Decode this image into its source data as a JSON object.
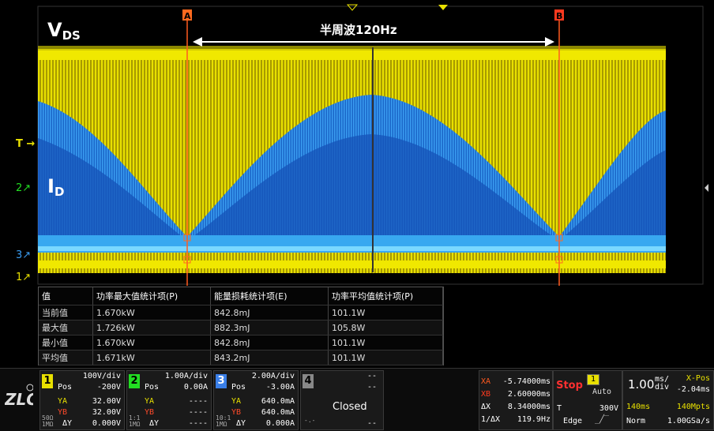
{
  "waveform": {
    "vds_label": "V",
    "vds_sub": "DS",
    "id_label": "I",
    "id_sub": "D",
    "annotation": "半周波120Hz",
    "cursor_a": "A",
    "cursor_b": "B",
    "markers": {
      "t": "T",
      "ch2": "2",
      "ch3": "3",
      "ch1": "1"
    },
    "colors": {
      "vds": "#e8e000",
      "id": "#1e7fe0",
      "cursor": "#ff5a1f",
      "ch2": "#22dd22"
    }
  },
  "measurements": {
    "headers": [
      "值",
      "功率最大值统计项(P)",
      "能量损耗统计项(E)",
      "功率平均值统计项(P)"
    ],
    "rows": [
      [
        "当前值",
        "1.670kW",
        "842.8mJ",
        "101.1W"
      ],
      [
        "最大值",
        "1.726kW",
        "882.3mJ",
        "105.8W"
      ],
      [
        "最小值",
        "1.670kW",
        "842.8mJ",
        "101.1W"
      ],
      [
        "平均值",
        "1.671kW",
        "843.2mJ",
        "101.1W"
      ]
    ]
  },
  "channels": [
    {
      "num": "1",
      "color": "#e8e000",
      "scale": "100V/div",
      "pos_label": "Pos",
      "pos": "-200V",
      "ya": "32.00V",
      "yb": "32.00V",
      "dy": "0.000V",
      "imp": "50Ω",
      "imp2": "1MΩ",
      "ya_label": "YA",
      "yb_label": "YB",
      "dy_label": "ΔY"
    },
    {
      "num": "2",
      "color": "#22dd22",
      "scale": "1.00A/div",
      "pos_label": "Pos",
      "pos": "0.00A",
      "ya": "----",
      "yb": "----",
      "dy": "----",
      "imp": "1:1",
      "imp2": "1MΩ",
      "ya_label": "YA",
      "yb_label": "YB",
      "dy_label": "ΔY"
    },
    {
      "num": "3",
      "color": "#3a7fe8",
      "scale": "2.00A/div",
      "pos_label": "Pos",
      "pos": "-3.00A",
      "ya": "640.0mA",
      "yb": "640.0mA",
      "dy": "0.000A",
      "imp": "10:1",
      "imp2": "1MΩ",
      "ya_label": "YA",
      "yb_label": "YB",
      "dy_label": "ΔY"
    },
    {
      "num": "4",
      "color": "#888888",
      "scale": "--",
      "pos": "--",
      "state": "Closed",
      "dy": "--",
      "imp": "-.-"
    }
  ],
  "cursors": {
    "xa_label": "XA",
    "xa": "-5.74000ms",
    "xb_label": "XB",
    "xb": "2.60000ms",
    "dx_label": "ΔX",
    "dx": "8.34000ms",
    "inv_label": "1/ΔX",
    "inv": "119.9Hz"
  },
  "trigger": {
    "state": "Stop",
    "mode": "Auto",
    "source": "1",
    "t_label": "T",
    "level": "300V",
    "type": "Edge"
  },
  "timebase": {
    "scale": "1.00",
    "unit_top": "ms/",
    "unit_bottom": "div",
    "xpos_label": "X-Pos",
    "xpos": "-2.04ms",
    "window": "140ms",
    "memory": "140Mpts",
    "mode": "Norm",
    "rate": "1.00GSa/s"
  }
}
